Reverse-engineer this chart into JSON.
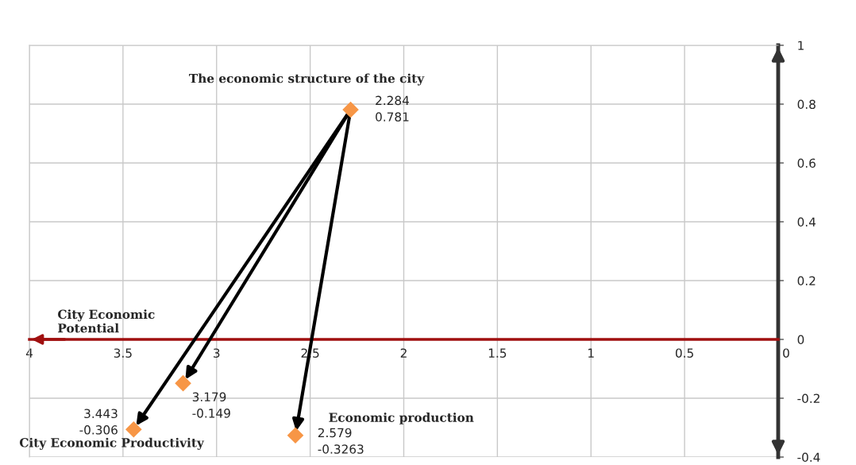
{
  "chart_data": {
    "type": "scatter",
    "xlabel": "City Economic Potential",
    "x": [
      2.284,
      3.443,
      3.179,
      2.579
    ],
    "values": [
      0.781,
      -0.306,
      -0.149,
      -0.3263
    ],
    "color": "#f79646",
    "marker": "diamond",
    "value_labels": [
      "2.284\n0.781",
      "3.443\n-0.306",
      "3.179\n-0.149",
      "2.579\n-0.3263"
    ],
    "xlim": [
      4,
      0
    ],
    "xticks": [
      4,
      3.5,
      3,
      2.5,
      2,
      1.5,
      1,
      0.5,
      0
    ],
    "ylim": [
      -0.4,
      1
    ],
    "yticks": [
      -0.4,
      -0.2,
      0,
      0.2,
      0.4,
      0.6,
      0.8,
      1
    ],
    "grid": true,
    "annotations": [
      {
        "text": "The economic structure of the city",
        "x": 2.284,
        "y": 0.781
      },
      {
        "text": "City Economic Productivity",
        "x": 3.443,
        "y": -0.306
      },
      {
        "text": "Economic production",
        "x": 2.579,
        "y": -0.3263
      }
    ]
  }
}
